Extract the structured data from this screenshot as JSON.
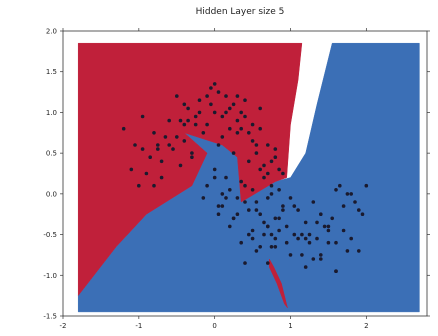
{
  "chart_data": {
    "type": "scatter",
    "title": "Hidden Layer size 5",
    "xlim": [
      -2,
      2.8
    ],
    "ylim": [
      -1.5,
      2.0
    ],
    "x_ticks": [
      -2,
      -1,
      0,
      1,
      2
    ],
    "x_tick_labels": [
      "-2",
      "-1",
      "0",
      "1",
      "2"
    ],
    "y_ticks": [
      2.0,
      1.5,
      1.0,
      0.5,
      0.0,
      -0.5,
      -1.0,
      -1.5
    ],
    "y_tick_labels": [
      "2.0",
      "1.5",
      "1.0",
      "0.5",
      "0.0",
      "-0.5",
      "-1.0",
      "-1.5"
    ],
    "grid": false,
    "decision_regions": [
      {
        "class": "red",
        "color": "#c0203a",
        "polygons": [
          [
            [
              -1.8,
              1.85
            ],
            [
              1.15,
              1.85
            ],
            [
              1.1,
              1.4
            ],
            [
              1.0,
              0.85
            ],
            [
              0.95,
              0.2
            ],
            [
              0.8,
              0.15
            ],
            [
              0.35,
              -0.1
            ],
            [
              0.3,
              0.45
            ],
            [
              0.1,
              0.6
            ],
            [
              -0.4,
              0.75
            ],
            [
              -0.1,
              0.5
            ],
            [
              -0.3,
              0.1
            ],
            [
              -0.9,
              -0.25
            ],
            [
              -1.3,
              -0.65
            ],
            [
              -1.8,
              -1.25
            ]
          ],
          [
            [
              0.72,
              -0.8
            ],
            [
              0.78,
              -0.9
            ],
            [
              0.88,
              -1.1
            ],
            [
              0.96,
              -1.4
            ],
            [
              0.92,
              -1.35
            ],
            [
              0.82,
              -1.1
            ],
            [
              0.72,
              -0.9
            ]
          ]
        ]
      },
      {
        "class": "blue",
        "color": "#3b6fb6",
        "polygons": [
          [
            [
              -1.8,
              -1.45
            ],
            [
              2.7,
              -1.45
            ],
            [
              2.7,
              1.85
            ],
            [
              1.55,
              1.85
            ],
            [
              1.35,
              1.1
            ],
            [
              1.2,
              0.5
            ],
            [
              1.0,
              0.2
            ],
            [
              0.8,
              0.15
            ],
            [
              0.35,
              -0.1
            ],
            [
              0.3,
              0.45
            ],
            [
              0.1,
              0.6
            ],
            [
              -0.4,
              0.75
            ],
            [
              -0.1,
              0.5
            ],
            [
              -0.3,
              0.1
            ],
            [
              -0.9,
              -0.25
            ],
            [
              -1.3,
              -0.65
            ],
            [
              -1.8,
              -1.25
            ]
          ]
        ]
      }
    ],
    "points": {
      "color": "#1a1a2e",
      "x": [
        -1.2,
        -1.05,
        -0.95,
        -0.85,
        -0.8,
        -0.7,
        -0.6,
        -0.55,
        -0.5,
        -0.45,
        -0.4,
        -0.35,
        -0.3,
        -0.25,
        -0.2,
        -0.15,
        -0.1,
        -0.05,
        0.0,
        0.05,
        0.1,
        0.15,
        0.2,
        0.25,
        0.3,
        0.35,
        0.4,
        0.45,
        0.5,
        0.55,
        0.6,
        0.65,
        0.7,
        0.75,
        0.8,
        0.85,
        0.9,
        -1.1,
        -0.9,
        -0.75,
        -0.6,
        -0.5,
        -0.4,
        -0.3,
        -0.2,
        -0.1,
        0.0,
        0.1,
        0.2,
        0.3,
        0.4,
        0.5,
        0.6,
        0.7,
        0.8,
        -1.0,
        -0.8,
        -0.65,
        -0.45,
        -0.25,
        -0.05,
        0.15,
        0.35,
        0.55,
        0.75,
        -0.95,
        -0.7,
        -0.35,
        0.05,
        0.25,
        0.45,
        0.65,
        -0.75,
        -0.4,
        0.0,
        0.3,
        0.6,
        0.85,
        -0.1,
        0.0,
        0.05,
        0.1,
        0.15,
        0.2,
        0.3,
        0.35,
        0.4,
        0.45,
        0.5,
        0.55,
        0.6,
        0.7,
        0.75,
        0.8,
        0.9,
        1.0,
        1.1,
        1.2,
        1.3,
        1.4,
        1.5,
        1.6,
        1.7,
        1.8,
        1.9,
        2.0,
        -0.15,
        0.05,
        0.15,
        0.25,
        0.4,
        0.5,
        0.65,
        0.8,
        0.95,
        1.05,
        1.15,
        1.25,
        1.35,
        1.5,
        1.65,
        1.8,
        1.95,
        0.1,
        0.2,
        0.35,
        0.55,
        0.7,
        0.9,
        1.1,
        1.25,
        1.45,
        1.6,
        1.75,
        1.9,
        0.25,
        0.45,
        0.6,
        0.85,
        1.0,
        1.2,
        1.4,
        1.55,
        1.7,
        1.85,
        0.3,
        0.5,
        0.75,
        1.05,
        1.3,
        1.5,
        1.75,
        0.4,
        0.7,
        0.95,
        1.15,
        1.35,
        1.6,
        0.55,
        0.65,
        0.8,
        0.85,
        1.2,
        1.4,
        1.6,
        0.7,
        0.75
      ],
      "y": [
        0.8,
        0.6,
        0.95,
        0.45,
        0.75,
        0.4,
        0.9,
        0.55,
        1.2,
        0.35,
        0.65,
        1.05,
        0.5,
        0.95,
        1.15,
        0.75,
        0.85,
        1.3,
        1.0,
        1.25,
        0.95,
        1.2,
        0.8,
        1.1,
        0.9,
        1.0,
        1.15,
        0.75,
        0.85,
        0.5,
        1.05,
        0.35,
        0.6,
        0.4,
        0.45,
        0.3,
        0.25,
        0.3,
        0.25,
        0.55,
        0.6,
        0.7,
        1.1,
        0.45,
        1.0,
        1.2,
        1.35,
        0.7,
        1.05,
        1.2,
        0.95,
        0.65,
        0.8,
        0.25,
        0.55,
        0.1,
        0.1,
        0.7,
        0.9,
        0.85,
        1.1,
        1.0,
        0.8,
        0.6,
        0.1,
        0.55,
        0.2,
        0.9,
        0.6,
        0.5,
        0.4,
        0.2,
        0.6,
        0.85,
        0.2,
        0.75,
        0.3,
        0.05,
        0.1,
        0.3,
        -0.15,
        0.0,
        0.2,
        0.05,
        -0.05,
        0.15,
        0.1,
        -0.2,
        0.05,
        -0.1,
        -0.25,
        -0.05,
        0.0,
        -0.3,
        -0.15,
        -0.05,
        -0.2,
        -0.35,
        -0.1,
        -0.25,
        -0.4,
        0.05,
        -0.15,
        0.0,
        -0.2,
        0.1,
        -0.05,
        -0.25,
        -0.05,
        -0.3,
        -0.1,
        -0.45,
        -0.35,
        -0.55,
        -0.4,
        -0.15,
        -0.5,
        -0.6,
        -0.35,
        -0.45,
        0.1,
        -0.55,
        -0.25,
        -0.15,
        -0.4,
        -0.6,
        -0.2,
        -0.4,
        -0.2,
        -0.55,
        -0.5,
        -0.4,
        -0.6,
        0.0,
        -0.7,
        -0.3,
        -0.5,
        -0.65,
        -0.3,
        -0.75,
        -0.55,
        -0.8,
        -0.3,
        -0.45,
        -0.1,
        -0.25,
        -0.55,
        -0.65,
        -0.5,
        -0.8,
        -0.6,
        -0.7,
        -0.85,
        -0.4,
        -0.6,
        -0.75,
        -0.55,
        -0.95,
        -0.7,
        -0.5,
        -0.65,
        -0.45,
        -0.9,
        -0.75,
        -0.95,
        -0.85,
        -0.5
      ]
    }
  }
}
